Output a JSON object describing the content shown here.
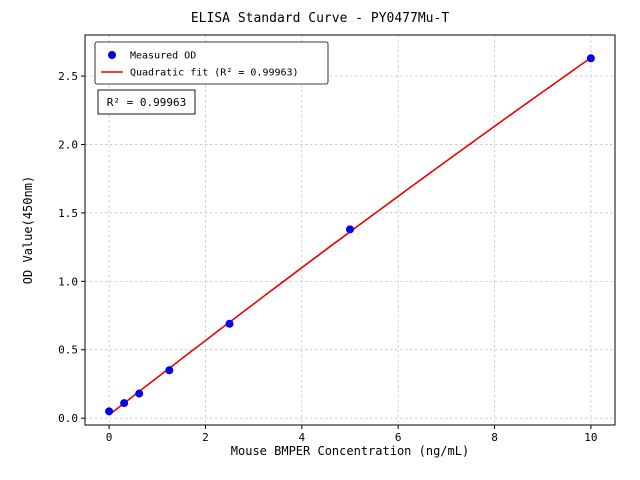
{
  "chart_data": {
    "type": "scatter",
    "title": "ELISA Standard Curve - PY0477Mu-T",
    "xlabel": "Mouse BMPER Concentration (ng/mL)",
    "ylabel": "OD Value(450nm)",
    "xlim": [
      -0.5,
      10.5
    ],
    "ylim": [
      -0.05,
      2.8
    ],
    "xticks": [
      0,
      2,
      4,
      6,
      8,
      10
    ],
    "xtick_labels": [
      "0",
      "2",
      "4",
      "6",
      "8",
      "10"
    ],
    "yticks": [
      0,
      0.5,
      1,
      1.5,
      2,
      2.5
    ],
    "ytick_labels": [
      "0.0",
      "0.5",
      "1.0",
      "1.5",
      "2.0",
      "2.5"
    ],
    "grid": true,
    "legend_position": "upper-left",
    "annotation": "R² = 0.99963",
    "r_squared": 0.99963,
    "series": [
      {
        "name": "Measured OD",
        "type": "scatter",
        "color": "#0000ee",
        "x": [
          0,
          0.3125,
          0.625,
          1.25,
          2.5,
          5,
          10
        ],
        "y": [
          0.05,
          0.11,
          0.18,
          0.35,
          0.69,
          1.38,
          2.63
        ]
      },
      {
        "name": "Quadratic fit (R² = 0.99963)",
        "type": "line",
        "fit": "quadratic",
        "color": "#ee0000"
      }
    ],
    "style": {
      "grid_color": "#bbbbbb",
      "axis_color": "#000000",
      "background": "#ffffff"
    }
  }
}
